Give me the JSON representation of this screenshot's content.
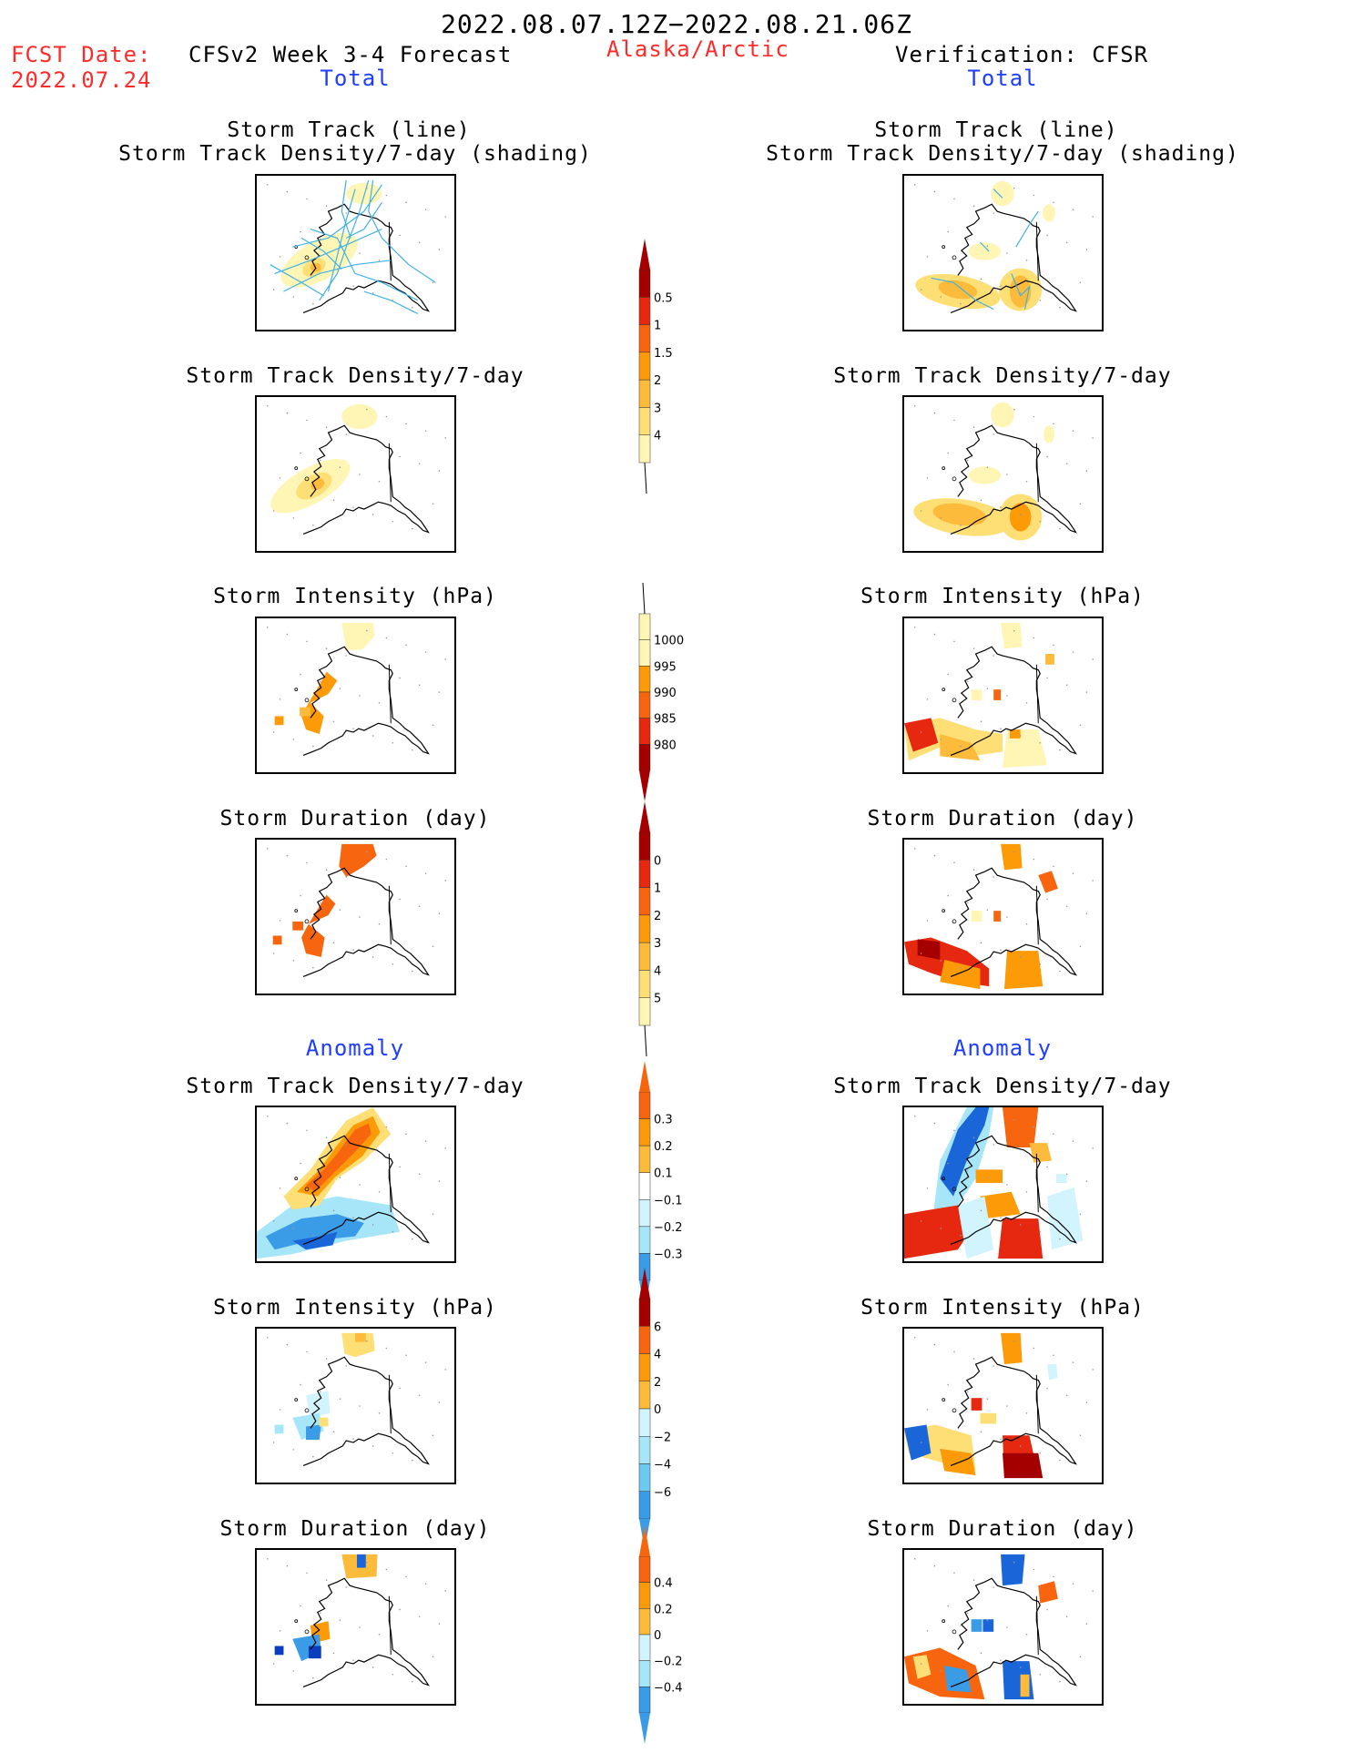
{
  "header": {
    "period": "2022.08.07.12Z−2022.08.21.06Z",
    "fcst_label": "FCST Date:",
    "fcst_date": "2022.07.24",
    "model": "CFSv2 Week 3-4 Forecast",
    "region": "Alaska/Arctic",
    "verification": "Verification: CFSR",
    "left_total": "Total",
    "right_total": "Total",
    "left_anomaly": "Anomaly",
    "right_anomaly": "Anomaly"
  },
  "panel_titles": {
    "track_line": "Storm Track (line)",
    "track_shading": "Storm Track Density/7-day (shading)",
    "density": "Storm Track Density/7-day",
    "intensity": "Storm Intensity (hPa)",
    "duration": "Storm Duration (day)"
  },
  "colors": {
    "title_red": "#ff2a2a",
    "title_blue": "#1f3dff",
    "warm": [
      "#fff5b5",
      "#fedf75",
      "#fdbb3c",
      "#fd9a08",
      "#f8650f",
      "#e5280f",
      "#a40000"
    ],
    "cool": [
      "#d1f4ff",
      "#a7e6f8",
      "#6cc9f1",
      "#3a9ce6",
      "#1a66d9",
      "#0b3ebf"
    ],
    "track_line": "#3fb0e6"
  },
  "colorbars": {
    "density_total": {
      "ticks": [
        "0.5",
        "1",
        "1.5",
        "2",
        "3",
        "4"
      ]
    },
    "intensity_total": {
      "ticks": [
        "1000",
        "995",
        "990",
        "985",
        "980"
      ]
    },
    "duration_total": {
      "ticks": [
        "0",
        "1",
        "2",
        "3",
        "4",
        "5"
      ]
    },
    "density_anom": {
      "ticks": [
        "0.3",
        "0.2",
        "0.1",
        "−0.1",
        "−0.2",
        "−0.3"
      ]
    },
    "intensity_anom": {
      "ticks": [
        "6",
        "4",
        "2",
        "0",
        "−2",
        "−4",
        "−6"
      ]
    },
    "duration_anom": {
      "ticks": [
        "0.4",
        "0.2",
        "0",
        "−0.2",
        "−0.4"
      ]
    }
  }
}
